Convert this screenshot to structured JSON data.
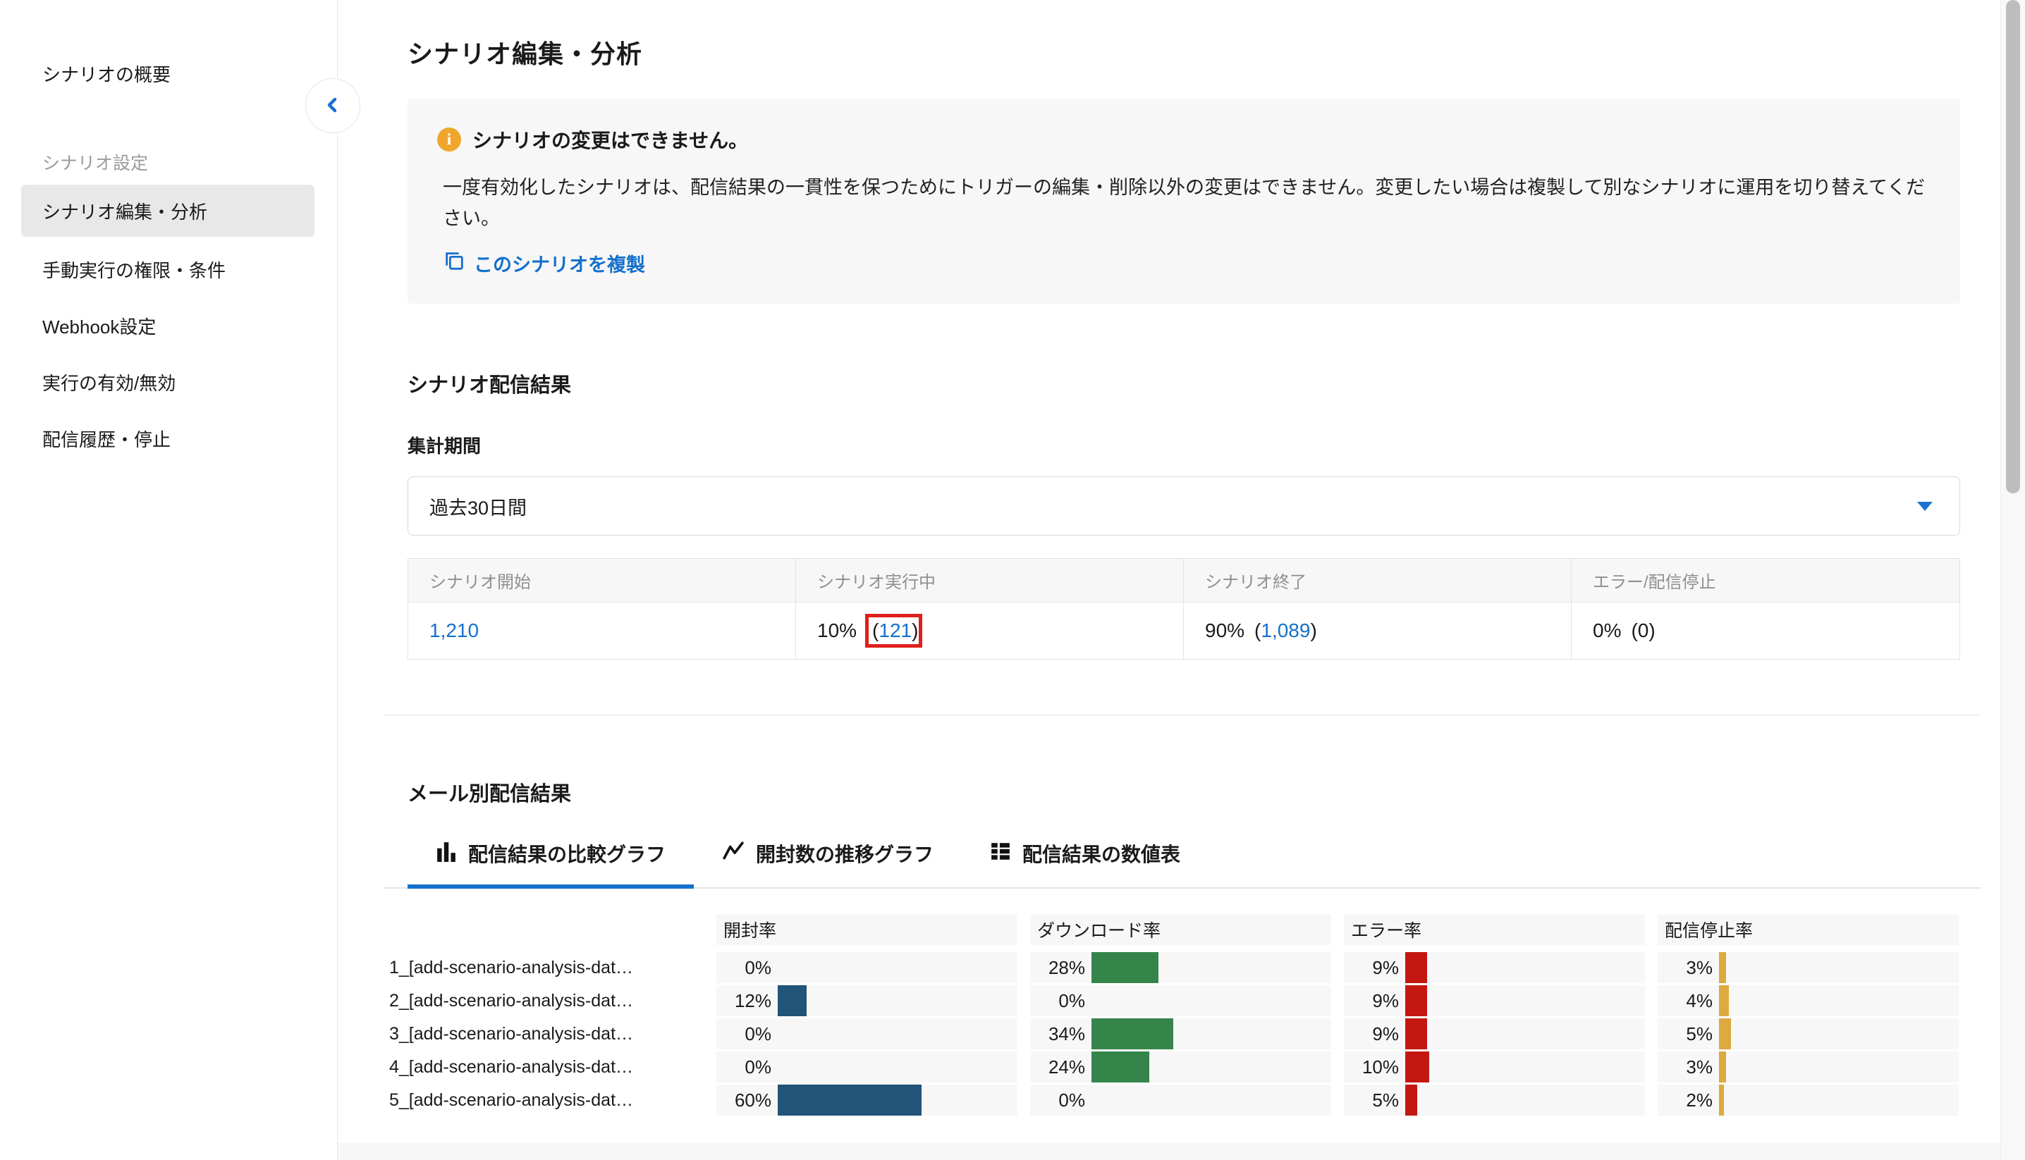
{
  "colors": {
    "accent_blue": "#1470cc",
    "bar_blue": "#215478",
    "bar_green": "#35854b",
    "bar_red": "#c41712",
    "bar_orange": "#dcaa3e",
    "highlight_red": "#df201c",
    "info_orange": "#f0a62c"
  },
  "sidebar": {
    "overview_label": "シナリオの概要",
    "section_label": "シナリオ設定",
    "items": [
      {
        "label": "シナリオ編集・分析",
        "active": true
      },
      {
        "label": "手動実行の権限・条件",
        "active": false
      },
      {
        "label": "Webhook設定",
        "active": false
      },
      {
        "label": "実行の有効/無効",
        "active": false
      },
      {
        "label": "配信履歴・停止",
        "active": false
      }
    ]
  },
  "page": {
    "title": "シナリオ編集・分析"
  },
  "notice": {
    "title": "シナリオの変更はできません。",
    "body": "一度有効化したシナリオは、配信結果の一貫性を保つためにトリガーの編集・削除以外の変更はできません。変更したい場合は複製して別なシナリオに運用を切り替えてください。",
    "copy_link": "このシナリオを複製"
  },
  "scenario_results": {
    "heading": "シナリオ配信結果",
    "period_label": "集計期間",
    "period_value": "過去30日間",
    "table": {
      "columns": [
        "シナリオ開始",
        "シナリオ実行中",
        "シナリオ終了",
        "エラー/配信停止"
      ],
      "started_count": "1,210",
      "running_pct": "10%",
      "running_open": "(",
      "running_count": "121",
      "running_close": ")",
      "ended_pct": "90%",
      "ended_open": "(",
      "ended_count": "1,089",
      "ended_close": ")",
      "error_pct": "0%",
      "error_count": "(0)"
    }
  },
  "mail_results": {
    "heading": "メール別配信結果",
    "tabs": [
      {
        "label": "配信結果の比較グラフ",
        "active": true
      },
      {
        "label": "開封数の推移グラフ",
        "active": false
      },
      {
        "label": "配信結果の数値表",
        "active": false
      }
    ]
  },
  "chart_data": {
    "type": "bar",
    "categories": [
      "1_[add-scenario-analysis-dat…",
      "2_[add-scenario-analysis-dat…",
      "3_[add-scenario-analysis-dat…",
      "4_[add-scenario-analysis-dat…",
      "5_[add-scenario-analysis-dat…"
    ],
    "series": [
      {
        "name": "開封率",
        "values": [
          0,
          12,
          0,
          0,
          60
        ],
        "color": "#215478"
      },
      {
        "name": "ダウンロード率",
        "values": [
          28,
          0,
          34,
          24,
          0
        ],
        "color": "#35854b"
      },
      {
        "name": "エラー率",
        "values": [
          9,
          9,
          9,
          10,
          5
        ],
        "color": "#c41712"
      },
      {
        "name": "配信停止率",
        "values": [
          3,
          4,
          5,
          3,
          2
        ],
        "color": "#dcaa3e"
      }
    ],
    "unit": "%",
    "xlim": [
      0,
      100
    ],
    "grid": false,
    "legend_position": "column-headers"
  }
}
